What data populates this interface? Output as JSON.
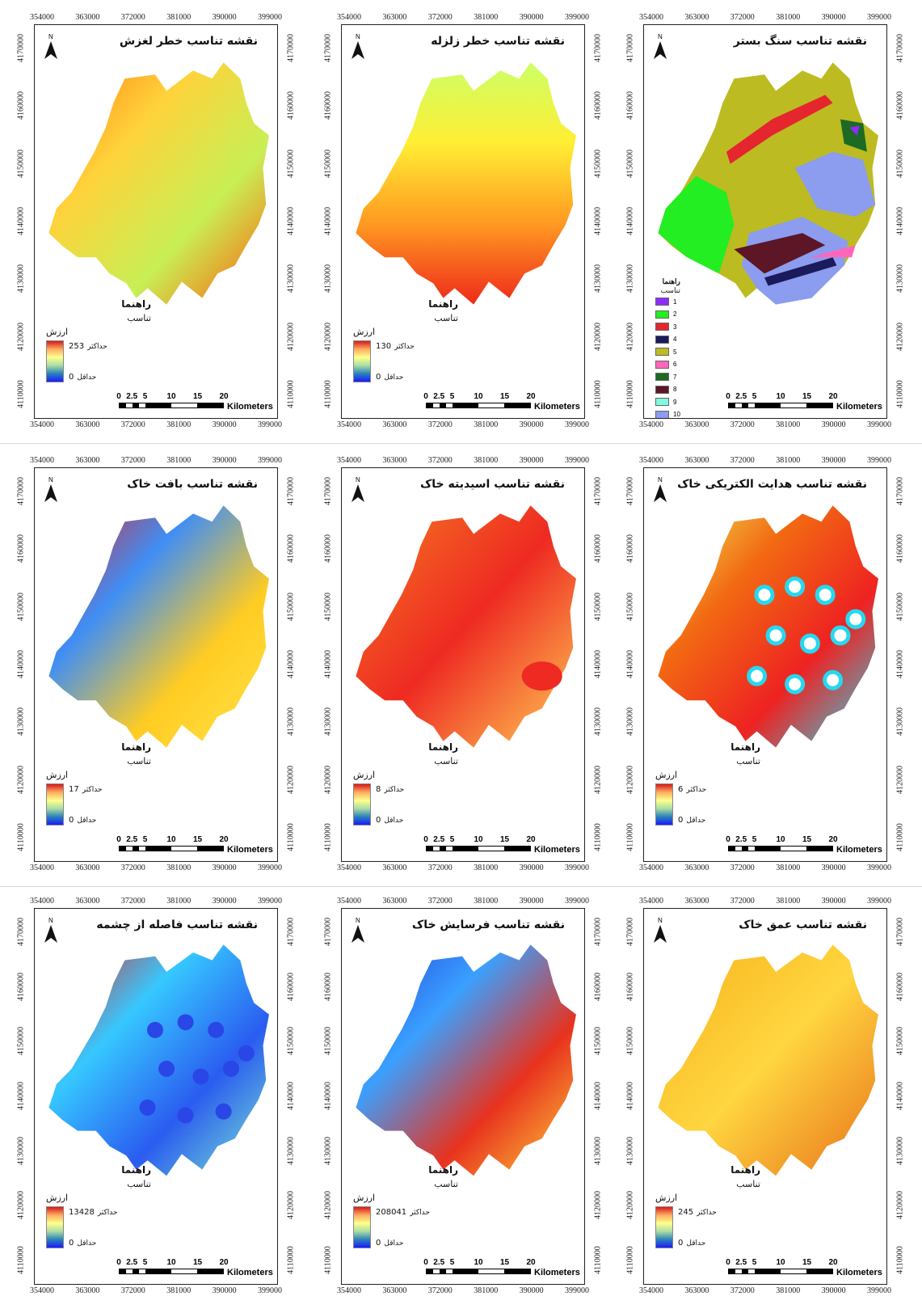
{
  "x_ticks": [
    "354000",
    "363000",
    "372000",
    "381000",
    "390000",
    "399000"
  ],
  "y_ticks": [
    "4170000",
    "4160000",
    "4150000",
    "4140000",
    "4130000",
    "4120000",
    "4110000"
  ],
  "north_letter": "N",
  "scale": {
    "ticks": [
      "0",
      "2.5",
      "5",
      "10",
      "15",
      "20"
    ],
    "unit": "Kilometers"
  },
  "legend": {
    "title": "راهنما",
    "subtitle": "تناسب",
    "value_label": "ارزش",
    "max_prefix": "حداکثر",
    "min_prefix": "حداقل"
  },
  "maps": [
    {
      "id": "landslide",
      "title": "نقشه تناسب خطر لغزش",
      "max": "253",
      "min": "0",
      "colors": [
        "#ff7a10",
        "#ffd23a",
        "#c8ef55",
        "#ff5a0a"
      ]
    },
    {
      "id": "earthquake",
      "title": "نقشه تناسب خطر زلزله",
      "max": "130",
      "min": "0",
      "colors": [
        "#ccff66",
        "#ffee33",
        "#ff9922",
        "#ee2a1a"
      ]
    },
    {
      "id": "bedrock",
      "title": "نقشه تناسب سنگ بستر",
      "legend_title": "راهنما",
      "legend_subtitle": "تناسب",
      "classes": [
        {
          "label": "1",
          "color": "#8f2bff"
        },
        {
          "label": "2",
          "color": "#22ee22"
        },
        {
          "label": "3",
          "color": "#e5262e"
        },
        {
          "label": "4",
          "color": "#1a1a5c"
        },
        {
          "label": "5",
          "color": "#bdbb22"
        },
        {
          "label": "6",
          "color": "#ff66bb"
        },
        {
          "label": "7",
          "color": "#1d6a24"
        },
        {
          "label": "8",
          "color": "#5c1626"
        },
        {
          "label": "9",
          "color": "#7ffadf"
        },
        {
          "label": "10",
          "color": "#8c9cee"
        }
      ]
    },
    {
      "id": "soil_texture",
      "title": "نقشه تناسب بافت خاک",
      "max": "17",
      "min": "0",
      "colors": [
        "#ee1a12",
        "#3f8ef5",
        "#ffcc22",
        "#ffe34a"
      ]
    },
    {
      "id": "soil_acidity",
      "title": "نقشه تناسب اسیدیته خاک",
      "max": "8",
      "min": "0",
      "colors": [
        "#f57b22",
        "#ee2a22",
        "#ffcc55"
      ]
    },
    {
      "id": "soil_conductivity",
      "title": "نقشه تناسب هدایت الکتریکی خاک",
      "max": "6",
      "min": "0",
      "colors": [
        "#f0f05a",
        "#f26a12",
        "#ee2222",
        "#27d8ef"
      ]
    },
    {
      "id": "spring_distance",
      "title": "نقشه تناسب فاصله از چشمه",
      "max": "13428",
      "min": "0",
      "colors": [
        "#ee1a12",
        "#36c8ff",
        "#2a5cf0",
        "#7de8d2"
      ]
    },
    {
      "id": "soil_erosion",
      "title": "نقشه تناسب فرسایش خاک",
      "max": "208041",
      "min": "0",
      "colors": [
        "#1f3bd9",
        "#3aa0ff",
        "#e8321e",
        "#ffd23a"
      ]
    },
    {
      "id": "soil_depth",
      "title": "نقشه تناسب عمق خاک",
      "max": "245",
      "min": "0",
      "colors": [
        "#f6b11a",
        "#ffd640",
        "#e8721a"
      ]
    }
  ]
}
